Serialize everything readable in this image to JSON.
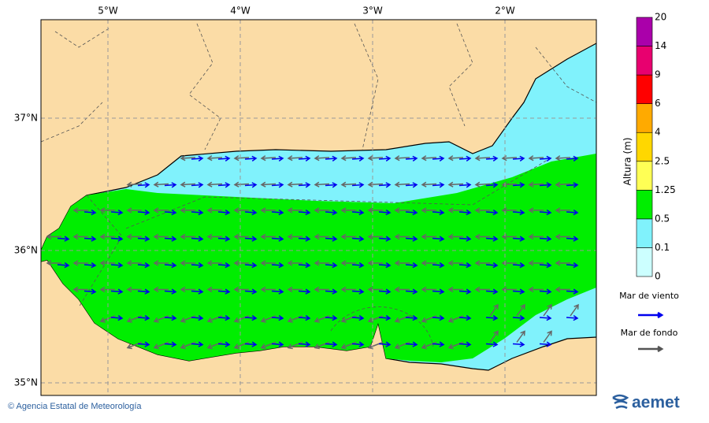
{
  "map": {
    "lon_labels": [
      "5°W",
      "4°W",
      "3°W",
      "2°W"
    ],
    "lat_labels": [
      "37°N",
      "36°N",
      "35°N"
    ]
  },
  "colorbar": {
    "title": "Altura (m)",
    "labels": [
      "0",
      "0.1",
      "0.5",
      "1.25",
      "2.5",
      "4",
      "6",
      "9",
      "14",
      "20"
    ],
    "colors": [
      "#ccffff",
      "#80f2fc",
      "#00ee00",
      "#ffff55",
      "#ffd700",
      "#ffaa00",
      "#ff0000",
      "#e8006f",
      "#aa00aa"
    ]
  },
  "legend": {
    "items": [
      {
        "label": "Mar de viento",
        "color": "#0000ee"
      },
      {
        "label": "Mar de fondo",
        "color": "#555555"
      }
    ]
  },
  "footer": {
    "credit": "© Agencia Estatal de Meteorología",
    "logo": "aemet"
  }
}
